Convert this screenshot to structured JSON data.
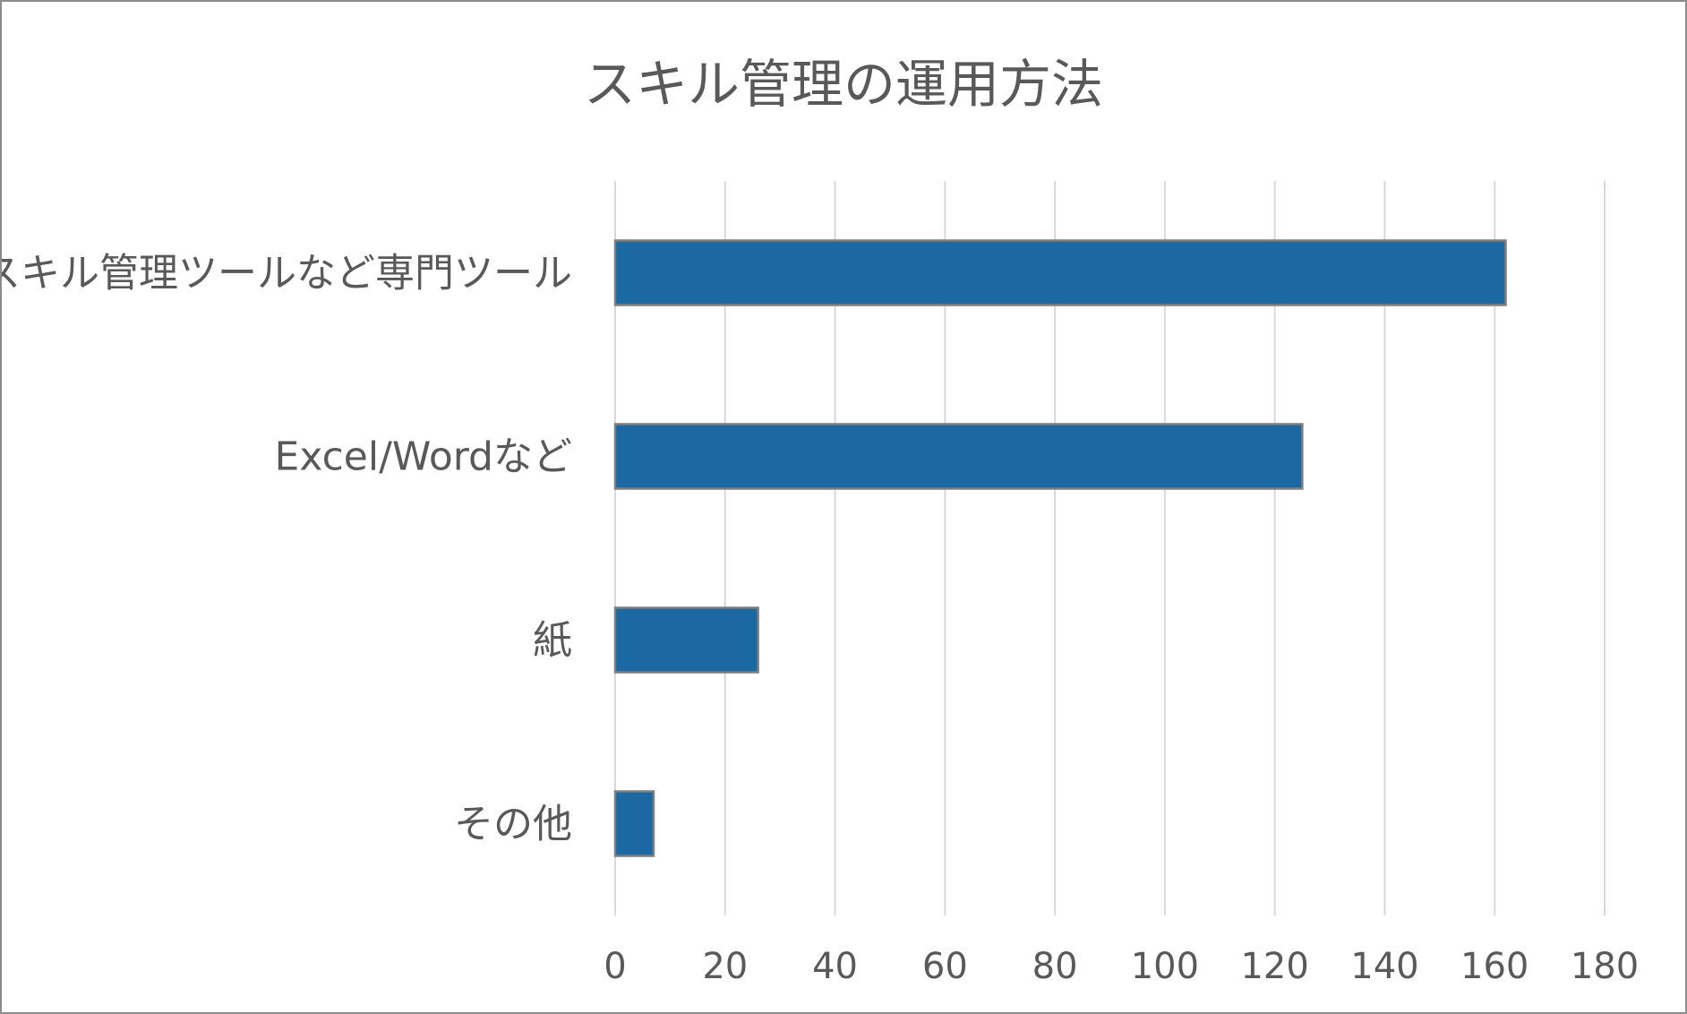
{
  "chart_data": {
    "type": "bar",
    "orientation": "horizontal",
    "title": "スキル管理の運用方法",
    "categories": [
      "スキル管理ツールなど専門ツール",
      "Excel/Wordなど",
      "紙",
      "その他"
    ],
    "values": [
      162,
      125,
      26,
      7
    ],
    "xlim": [
      0,
      180
    ],
    "x_ticks": [
      0,
      20,
      40,
      60,
      80,
      100,
      120,
      140,
      160,
      180
    ],
    "xlabel": "",
    "ylabel": "",
    "grid": "vertical",
    "legend": "none",
    "colors": {
      "bar_fill": "#1b68a3",
      "bar_edge": "#7f7f7f",
      "grid": "#d9d9d9",
      "text": "#595959"
    }
  }
}
